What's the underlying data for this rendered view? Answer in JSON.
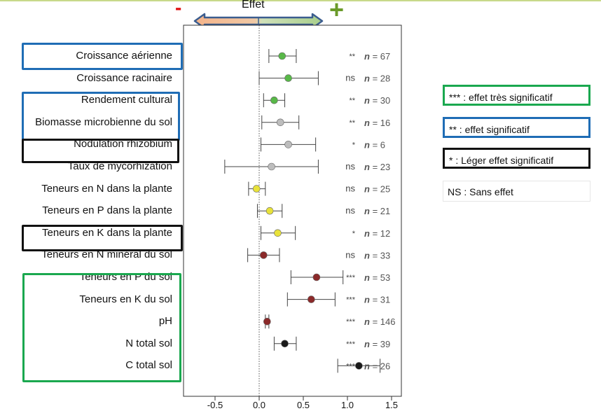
{
  "header": {
    "effect_label": "Effet",
    "minus": "-",
    "plus": "+"
  },
  "legend": [
    {
      "text": "*** : effet très significatif",
      "color": "#1aa84f"
    },
    {
      "text": "** : effet significatif",
      "color": "#1f6db5"
    },
    {
      "text": "* : Léger effet significatif",
      "color": "#111111"
    },
    {
      "text": "NS : Sans effet",
      "color": ""
    }
  ],
  "chart_data": {
    "type": "forest",
    "xlim": [
      -0.85,
      1.6
    ],
    "xticks": [
      "-0.5",
      "0.0",
      "0.5",
      "1.0",
      "1.5"
    ],
    "reference_line": 0,
    "rows": [
      {
        "label": "Croissance aérienne",
        "effect": 0.26,
        "ci": [
          0.11,
          0.42
        ],
        "sig": "**",
        "n": "67",
        "color": "#58b848"
      },
      {
        "label": "Croissance racinaire",
        "effect": 0.33,
        "ci": [
          0.0,
          0.67
        ],
        "sig": "ns",
        "n": "28",
        "color": "#58b848"
      },
      {
        "label": "Rendement cultural",
        "effect": 0.17,
        "ci": [
          0.05,
          0.29
        ],
        "sig": "**",
        "n": "30",
        "color": "#58b848"
      },
      {
        "label": "Biomasse microbienne du sol",
        "effect": 0.24,
        "ci": [
          0.03,
          0.45
        ],
        "sig": "**",
        "n": "16",
        "color": "#bdbdbd"
      },
      {
        "label": "Nodulation rhizobium",
        "effect": 0.33,
        "ci": [
          0.02,
          0.64
        ],
        "sig": "*",
        "n": "6",
        "color": "#bdbdbd"
      },
      {
        "label": "Taux de mycorhization",
        "effect": 0.14,
        "ci": [
          -0.39,
          0.67
        ],
        "sig": "ns",
        "n": "23",
        "color": "#bdbdbd"
      },
      {
        "label": "Teneurs en N dans la plante",
        "effect": -0.03,
        "ci": [
          -0.12,
          0.07
        ],
        "sig": "ns",
        "n": "25",
        "color": "#e8e23a"
      },
      {
        "label": "Teneurs en P dans la plante",
        "effect": 0.12,
        "ci": [
          -0.02,
          0.26
        ],
        "sig": "ns",
        "n": "21",
        "color": "#e8e23a"
      },
      {
        "label": "Teneurs en K dans la plante",
        "effect": 0.21,
        "ci": [
          0.02,
          0.41
        ],
        "sig": "*",
        "n": "12",
        "color": "#e8e23a"
      },
      {
        "label": "Teneurs en N minéral du sol",
        "effect": 0.05,
        "ci": [
          -0.13,
          0.23
        ],
        "sig": "ns",
        "n": "33",
        "color": "#8b2a2a"
      },
      {
        "label": "Teneurs en P du sol",
        "effect": 0.65,
        "ci": [
          0.36,
          0.95
        ],
        "sig": "***",
        "n": "53",
        "color": "#8b2a2a"
      },
      {
        "label": "Teneurs en K du sol",
        "effect": 0.59,
        "ci": [
          0.32,
          0.86
        ],
        "sig": "***",
        "n": "31",
        "color": "#8b2a2a"
      },
      {
        "label": "pH",
        "effect": 0.09,
        "ci": [
          0.07,
          0.11
        ],
        "sig": "***",
        "n": "146",
        "color": "#8b2a2a"
      },
      {
        "label": "N total sol",
        "effect": 0.29,
        "ci": [
          0.17,
          0.42
        ],
        "sig": "***",
        "n": "39",
        "color": "#1a1a1a"
      },
      {
        "label": "C total sol",
        "effect": 1.13,
        "ci": [
          0.89,
          1.37
        ],
        "sig": "***",
        "n": "26",
        "color": "#1a1a1a"
      }
    ]
  }
}
